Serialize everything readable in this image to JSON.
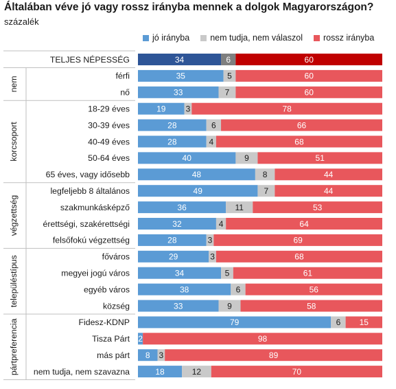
{
  "title": "Általában véve jó vagy rossz irányba mennek a dolgok Magyarországon?",
  "subtitle": "százalék",
  "chart_data": {
    "type": "bar",
    "stacked": true,
    "orientation": "horizontal",
    "xlim": [
      0,
      100
    ],
    "legend_position": "top",
    "series_names": [
      "jó irányba",
      "nem tudja, nem válaszol",
      "rossz irányba"
    ],
    "colors": {
      "good": "#5b9bd5",
      "dk": "#c9c9c9",
      "bad": "#e8575c",
      "total_good": "#2e5597",
      "total_dk": "#7f7f7f",
      "total_bad": "#c00000"
    },
    "groups": [
      {
        "name": "",
        "rows": [
          {
            "label": "TELJES NÉPESSÉG",
            "values": [
              34,
              6,
              60
            ],
            "total": true
          }
        ]
      },
      {
        "name": "nem",
        "rows": [
          {
            "label": "férfi",
            "values": [
              35,
              5,
              60
            ]
          },
          {
            "label": "nő",
            "values": [
              33,
              7,
              60
            ]
          }
        ]
      },
      {
        "name": "korcsoport",
        "rows": [
          {
            "label": "18-29 éves",
            "values": [
              19,
              3,
              78
            ]
          },
          {
            "label": "30-39 éves",
            "values": [
              28,
              6,
              66
            ]
          },
          {
            "label": "40-49 éves",
            "values": [
              28,
              4,
              68
            ]
          },
          {
            "label": "50-64 éves",
            "values": [
              40,
              9,
              51
            ]
          },
          {
            "label": "65 éves, vagy idősebb",
            "values": [
              48,
              8,
              44
            ]
          }
        ]
      },
      {
        "name": "végzettség",
        "rows": [
          {
            "label": "legfeljebb 8 általános",
            "values": [
              49,
              7,
              44
            ]
          },
          {
            "label": "szakmunkásképző",
            "values": [
              36,
              11,
              53
            ]
          },
          {
            "label": "érettségi, szakérettségi",
            "values": [
              32,
              4,
              64
            ]
          },
          {
            "label": "felsőfokú végzettség",
            "values": [
              28,
              3,
              69
            ]
          }
        ]
      },
      {
        "name": "településtípus",
        "rows": [
          {
            "label": "főváros",
            "values": [
              29,
              3,
              68
            ]
          },
          {
            "label": "megyei jogú város",
            "values": [
              34,
              5,
              61
            ]
          },
          {
            "label": "egyéb város",
            "values": [
              38,
              6,
              56
            ]
          },
          {
            "label": "község",
            "values": [
              33,
              9,
              58
            ]
          }
        ]
      },
      {
        "name": "pártpreferencia",
        "rows": [
          {
            "label": "Fidesz-KDNP",
            "values": [
              79,
              6,
              15
            ]
          },
          {
            "label": "Tisza Párt",
            "values": [
              2,
              0,
              98
            ]
          },
          {
            "label": "más párt",
            "values": [
              8,
              3,
              89
            ]
          },
          {
            "label": "nem tudja, nem szavazna",
            "values": [
              18,
              12,
              70
            ]
          }
        ]
      }
    ]
  }
}
